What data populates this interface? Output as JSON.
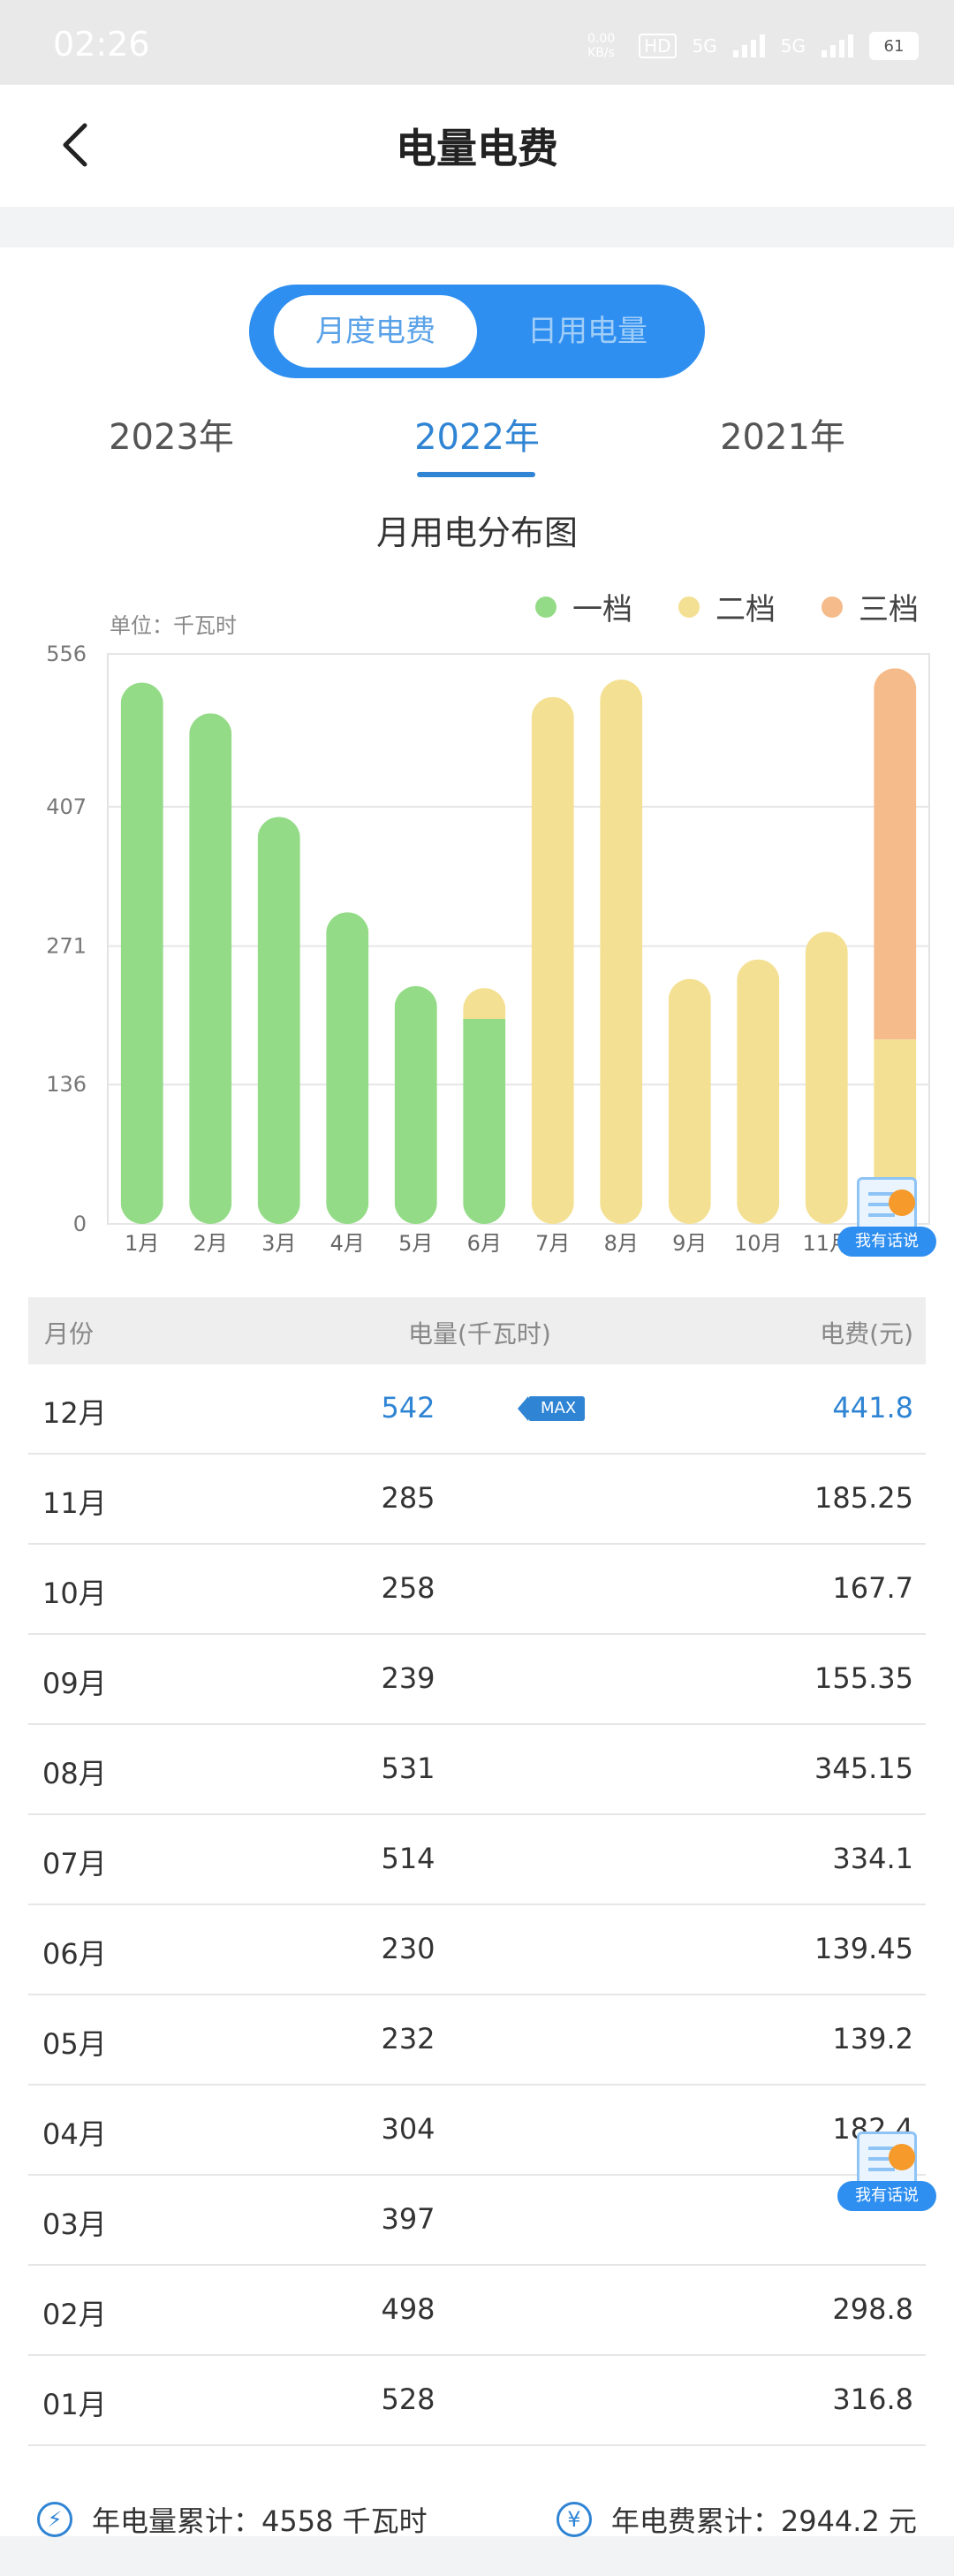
{
  "status_bar": {
    "time": "02:26",
    "net_speed": "0.00 KB/s",
    "hd": "HD",
    "sig1": "5G",
    "sig2": "5G",
    "battery": "61"
  },
  "header": {
    "title": "电量电费"
  },
  "toggle": {
    "active": "月度电费",
    "inactive": "日用电量"
  },
  "years": [
    "2023年",
    "2022年",
    "2021年"
  ],
  "selected_year": "2022年",
  "chart_data": {
    "type": "bar",
    "stacked": true,
    "title": "月用电分布图",
    "unit_label": "单位：千瓦时",
    "categories": [
      "1月",
      "2月",
      "3月",
      "4月",
      "5月",
      "6月",
      "7月",
      "8月",
      "9月",
      "10月",
      "11月",
      "12月"
    ],
    "y_ticks": [
      0,
      136,
      271,
      407,
      556
    ],
    "ylim": [
      0,
      556
    ],
    "legend": [
      "一档",
      "二档",
      "三档"
    ],
    "series": [
      {
        "name": "一档",
        "color": "#93db86",
        "values": [
          528,
          498,
          397,
          304,
          232,
          200,
          0,
          0,
          0,
          0,
          0,
          0
        ]
      },
      {
        "name": "二档",
        "color": "#f4e092",
        "values": [
          0,
          0,
          0,
          0,
          0,
          30,
          514,
          531,
          239,
          258,
          285,
          180
        ]
      },
      {
        "name": "三档",
        "color": "#f6bb8a",
        "values": [
          0,
          0,
          0,
          0,
          0,
          0,
          0,
          0,
          0,
          0,
          0,
          362
        ]
      }
    ],
    "grid": true
  },
  "feedback_badge": {
    "label": "我有话说"
  },
  "table": {
    "headers": {
      "month": "月份",
      "energy": "电量(千瓦时)",
      "fee": "电费(元)"
    },
    "max_tag": "MAX",
    "rows": [
      {
        "month": "12月",
        "energy": "542",
        "fee": "441.8"
      },
      {
        "month": "11月",
        "energy": "285",
        "fee": "185.25"
      },
      {
        "month": "10月",
        "energy": "258",
        "fee": "167.7"
      },
      {
        "month": "09月",
        "energy": "239",
        "fee": "155.35"
      },
      {
        "month": "08月",
        "energy": "531",
        "fee": "345.15"
      },
      {
        "month": "07月",
        "energy": "514",
        "fee": "334.1"
      },
      {
        "month": "06月",
        "energy": "230",
        "fee": "139.45"
      },
      {
        "month": "05月",
        "energy": "232",
        "fee": "139.2"
      },
      {
        "month": "04月",
        "energy": "304",
        "fee": "182.4"
      },
      {
        "month": "03月",
        "energy": "397",
        "fee": ""
      },
      {
        "month": "02月",
        "energy": "498",
        "fee": "298.8"
      },
      {
        "month": "01月",
        "energy": "528",
        "fee": "316.8"
      }
    ]
  },
  "summary": {
    "energy_label": "年电量累计：4558 千瓦时",
    "fee_label": "年电费累计：2944.2 元"
  }
}
